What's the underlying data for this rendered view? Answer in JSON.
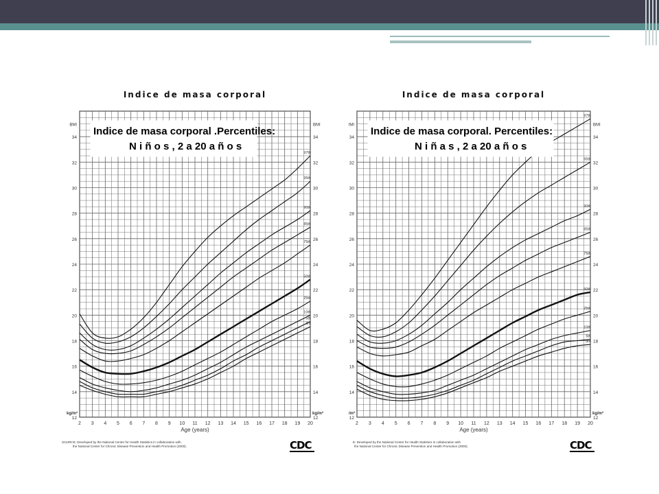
{
  "slide": {
    "colors": {
      "top_band": "#3f3f50",
      "teal_band": "#5a8f8f",
      "accent_line": "#9bbaba"
    }
  },
  "chart_data": [
    {
      "type": "line",
      "title": "Indice de masa corporal",
      "inset_title_line1": "Indice de masa corporal .Percentiles:",
      "inset_title_line2": "N i ñ o s , 2 a 20 a ñ o s",
      "xlabel": "Age (years)",
      "ylabel_top": "BMI",
      "ylabel_bottom": "kg/m²",
      "xlim": [
        2,
        20
      ],
      "ylim": [
        12,
        36
      ],
      "x_ticks": [
        2,
        3,
        4,
        5,
        6,
        7,
        8,
        9,
        10,
        11,
        12,
        13,
        14,
        15,
        16,
        17,
        18,
        19,
        20
      ],
      "y_ticks": [
        12,
        14,
        16,
        18,
        20,
        22,
        24,
        26,
        28,
        30,
        32,
        34
      ],
      "grid": true,
      "x": [
        2,
        3,
        4,
        5,
        6,
        7,
        8,
        9,
        10,
        11,
        12,
        13,
        14,
        15,
        16,
        17,
        18,
        19,
        20
      ],
      "series": [
        {
          "name": "97th",
          "bold": false,
          "values": [
            20.1,
            18.6,
            18.2,
            18.3,
            18.9,
            19.8,
            21.0,
            22.4,
            23.8,
            25.0,
            26.1,
            27.0,
            27.8,
            28.5,
            29.2,
            29.9,
            30.6,
            31.5,
            32.5
          ]
        },
        {
          "name": "95th",
          "bold": false,
          "values": [
            19.3,
            18.2,
            17.8,
            17.9,
            18.3,
            19.0,
            19.9,
            20.9,
            22.0,
            23.0,
            24.0,
            24.9,
            25.8,
            26.7,
            27.5,
            28.2,
            28.9,
            29.6,
            30.5
          ]
        },
        {
          "name": "90th",
          "bold": false,
          "values": [
            18.6,
            17.7,
            17.3,
            17.3,
            17.6,
            18.2,
            18.9,
            19.7,
            20.6,
            21.5,
            22.4,
            23.3,
            24.1,
            24.9,
            25.6,
            26.3,
            26.9,
            27.5,
            28.2
          ]
        },
        {
          "name": "85th",
          "bold": false,
          "values": [
            18.1,
            17.3,
            17.0,
            17.0,
            17.2,
            17.7,
            18.3,
            19.0,
            19.8,
            20.6,
            21.4,
            22.2,
            23.0,
            23.7,
            24.4,
            25.1,
            25.7,
            26.3,
            26.9
          ]
        },
        {
          "name": "75th",
          "bold": false,
          "values": [
            17.4,
            16.8,
            16.4,
            16.4,
            16.6,
            16.9,
            17.4,
            18.0,
            18.7,
            19.4,
            20.1,
            20.8,
            21.5,
            22.2,
            22.9,
            23.5,
            24.1,
            24.8,
            25.5
          ]
        },
        {
          "name": "50th",
          "bold": true,
          "values": [
            16.5,
            15.9,
            15.5,
            15.4,
            15.4,
            15.6,
            15.9,
            16.3,
            16.8,
            17.3,
            17.9,
            18.5,
            19.1,
            19.7,
            20.3,
            20.9,
            21.5,
            22.1,
            22.8
          ]
        },
        {
          "name": "25th",
          "bold": false,
          "values": [
            15.7,
            15.2,
            14.8,
            14.6,
            14.6,
            14.7,
            14.9,
            15.2,
            15.6,
            16.1,
            16.6,
            17.1,
            17.7,
            18.3,
            18.9,
            19.5,
            20.0,
            20.5,
            21.1
          ]
        },
        {
          "name": "10th",
          "bold": false,
          "values": [
            15.1,
            14.6,
            14.3,
            14.1,
            14.0,
            14.1,
            14.3,
            14.6,
            14.9,
            15.3,
            15.8,
            16.3,
            16.9,
            17.5,
            18.0,
            18.5,
            19.0,
            19.5,
            20.0
          ]
        },
        {
          "name": "5th",
          "bold": false,
          "values": [
            14.8,
            14.3,
            14.0,
            13.8,
            13.8,
            13.8,
            14.0,
            14.2,
            14.5,
            14.9,
            15.3,
            15.8,
            16.4,
            16.9,
            17.5,
            18.0,
            18.5,
            19.0,
            19.5
          ]
        },
        {
          "name": "3rd",
          "bold": false,
          "values": [
            14.5,
            14.1,
            13.8,
            13.6,
            13.6,
            13.6,
            13.8,
            14.0,
            14.3,
            14.6,
            15.0,
            15.5,
            16.0,
            16.6,
            17.1,
            17.6,
            18.1,
            18.6,
            19.1
          ]
        }
      ],
      "footnote_line1": "SOURCE: Developed by the National Center for Health Statistics in collaboration with",
      "footnote_line2": "the National Center for Chronic Disease Prevention and Health Promotion (2000).",
      "logo_text": "CDC"
    },
    {
      "type": "line",
      "title": "Indice de masa corporal",
      "inset_title_line1": "Indice de masa corporal. Percentiles:",
      "inset_title_line2": "N i ñ a s , 2 a 20 a ñ o s",
      "xlabel": "Age (years)",
      "ylabel_top": "BMI",
      "ylabel_bottom": "kg/m²",
      "xlim": [
        2,
        20
      ],
      "ylim": [
        12,
        36
      ],
      "x_ticks": [
        2,
        3,
        4,
        5,
        6,
        7,
        8,
        9,
        10,
        11,
        12,
        13,
        14,
        15,
        16,
        17,
        18,
        19,
        20
      ],
      "y_ticks": [
        12,
        14,
        16,
        18,
        20,
        22,
        24,
        26,
        28,
        30,
        32,
        34
      ],
      "grid": true,
      "x": [
        2,
        3,
        4,
        5,
        6,
        7,
        8,
        9,
        10,
        11,
        12,
        13,
        14,
        15,
        16,
        17,
        18,
        19,
        20
      ],
      "series": [
        {
          "name": "97th",
          "bold": false,
          "values": [
            19.6,
            18.8,
            18.9,
            19.4,
            20.4,
            21.6,
            22.9,
            24.3,
            25.7,
            27.1,
            28.5,
            29.8,
            31.0,
            32.0,
            32.9,
            33.6,
            34.2,
            34.8,
            35.4
          ]
        },
        {
          "name": "95th",
          "bold": false,
          "values": [
            19.1,
            18.4,
            18.3,
            18.7,
            19.4,
            20.4,
            21.5,
            22.7,
            23.9,
            25.1,
            26.2,
            27.2,
            28.1,
            28.9,
            29.6,
            30.2,
            30.8,
            31.4,
            32.0
          ]
        },
        {
          "name": "90th",
          "bold": false,
          "values": [
            18.5,
            17.9,
            17.8,
            18.0,
            18.5,
            19.2,
            20.1,
            21.0,
            22.0,
            22.9,
            23.8,
            24.6,
            25.3,
            25.9,
            26.4,
            26.9,
            27.4,
            27.8,
            28.3
          ]
        },
        {
          "name": "85th",
          "bold": false,
          "values": [
            18.0,
            17.5,
            17.4,
            17.5,
            17.9,
            18.5,
            19.2,
            20.0,
            20.8,
            21.6,
            22.4,
            23.1,
            23.7,
            24.3,
            24.8,
            25.3,
            25.7,
            26.1,
            26.5
          ]
        },
        {
          "name": "75th",
          "bold": false,
          "values": [
            17.5,
            17.0,
            16.8,
            16.9,
            17.1,
            17.6,
            18.1,
            18.8,
            19.5,
            20.2,
            20.8,
            21.4,
            22.0,
            22.5,
            23.0,
            23.4,
            23.8,
            24.2,
            24.6
          ]
        },
        {
          "name": "50th",
          "bold": true,
          "values": [
            16.4,
            15.8,
            15.4,
            15.2,
            15.3,
            15.5,
            15.9,
            16.4,
            17.0,
            17.6,
            18.2,
            18.8,
            19.4,
            19.9,
            20.4,
            20.8,
            21.2,
            21.6,
            21.8
          ]
        },
        {
          "name": "25th",
          "bold": false,
          "values": [
            15.5,
            15.0,
            14.6,
            14.4,
            14.4,
            14.6,
            14.9,
            15.3,
            15.8,
            16.3,
            16.8,
            17.4,
            17.9,
            18.4,
            18.9,
            19.3,
            19.7,
            20.0,
            20.3
          ]
        },
        {
          "name": "10th",
          "bold": false,
          "values": [
            14.8,
            14.3,
            14.0,
            13.8,
            13.8,
            13.9,
            14.1,
            14.5,
            14.9,
            15.3,
            15.8,
            16.3,
            16.8,
            17.3,
            17.7,
            18.1,
            18.4,
            18.6,
            18.8
          ]
        },
        {
          "name": "5th",
          "bold": false,
          "values": [
            14.5,
            14.0,
            13.7,
            13.5,
            13.5,
            13.6,
            13.8,
            14.1,
            14.5,
            14.9,
            15.4,
            15.9,
            16.4,
            16.8,
            17.2,
            17.6,
            17.9,
            18.0,
            18.1
          ]
        },
        {
          "name": "3rd",
          "bold": false,
          "values": [
            14.2,
            13.7,
            13.4,
            13.3,
            13.3,
            13.4,
            13.6,
            13.9,
            14.3,
            14.7,
            15.1,
            15.6,
            16.0,
            16.4,
            16.8,
            17.1,
            17.4,
            17.6,
            17.7
          ]
        }
      ],
      "footnote_line1": "E: Developed by the National Center for Health Statistics in collaboration with",
      "footnote_line2": "the National Center for Chronic Disease Prevention and Health Promotion (2000).",
      "logo_text": "CDC"
    }
  ]
}
